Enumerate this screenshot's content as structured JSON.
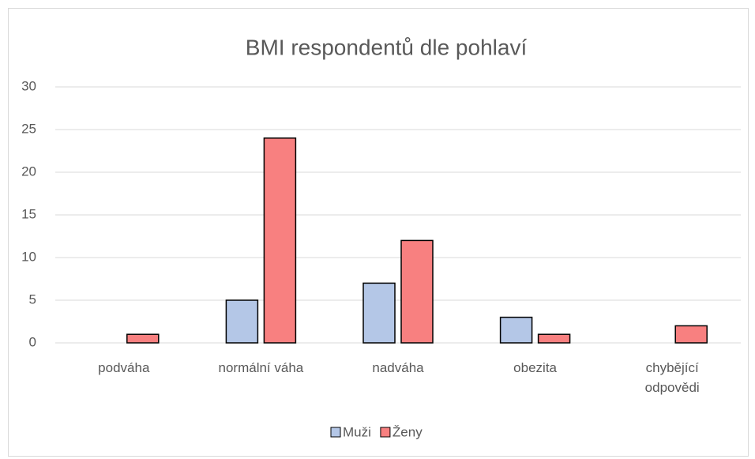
{
  "chart_data": {
    "type": "bar",
    "title": "BMI respondentů dle pohlaví",
    "categories": [
      "podváha",
      "normální váha",
      "nadváha",
      "obezita",
      "chybějící odpovědi"
    ],
    "series": [
      {
        "name": "Muži",
        "color": "#b4c7e7",
        "values": [
          0,
          5,
          7,
          3,
          0
        ]
      },
      {
        "name": "Ženy",
        "color": "#f88080",
        "values": [
          1,
          24,
          12,
          1,
          2
        ]
      }
    ],
    "ylim": [
      0,
      30
    ],
    "yticks": [
      0,
      5,
      10,
      15,
      20,
      25,
      30
    ],
    "grid": true,
    "legend": "bottom"
  }
}
